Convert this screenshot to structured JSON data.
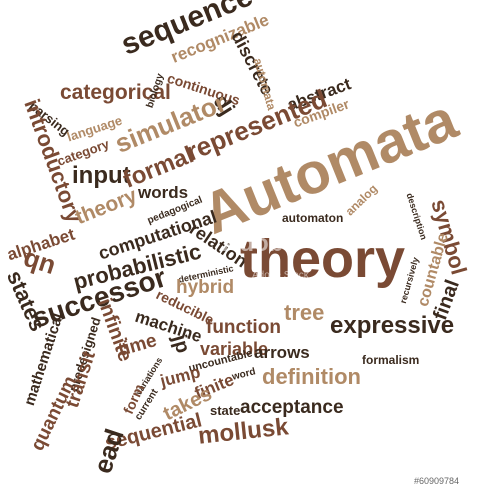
{
  "image_kind": "word-cloud",
  "background_color": "#ffffff",
  "palette": {
    "dark": "#3a2a1e",
    "brown": "#7a4a34",
    "tan": "#b08a66",
    "light": "#cdb192"
  },
  "words": {
    "sequence": "sequence",
    "recognizable": "recognizable",
    "discrete": "discrete",
    "automata_small": "automata",
    "abstract": "abstract",
    "compiler": "compiler",
    "categorical": "categorical",
    "biology": "biology",
    "continuous": "continuous",
    "dj": "dj",
    "parsing": "parsing",
    "language": "language",
    "simulator": "simulator",
    "represented": "represented",
    "introductory": "introductory",
    "category": "category",
    "input": "input",
    "formal": "formal",
    "automata_big": "Automata",
    "words": "words",
    "theory_small": "theory",
    "pedagogical": "pedagogical",
    "automaton": "automaton",
    "analog": "analog",
    "description": "description",
    "symbol": "symbol",
    "alphabet": "alphabet",
    "computational": "computational",
    "relation": "relation",
    "deterministic": "deterministic",
    "theory_big": "theory",
    "countable": "countable",
    "recursively": "recursively",
    "final": "final",
    "states": "states",
    "qn": "qn",
    "probabilistic": "probabilistic",
    "successor": "successor",
    "hybrid": "hybrid",
    "reducible": "reducible",
    "tree": "tree",
    "expressive": "expressive",
    "function": "function",
    "infinite": "infinite",
    "predesigned": "predesigned",
    "mathematical": "mathematical",
    "machine": "machine",
    "time": "time",
    "jp": "jp",
    "variable": "variable",
    "arrows": "arrows",
    "uncountable": "uncountable",
    "jump": "jump",
    "finite": "finite",
    "word": "word",
    "definition": "definition",
    "formalism": "formalism",
    "transit": "transit",
    "quantum": "quantum",
    "variations": "variations",
    "form": "form",
    "current": "current",
    "takes": "takes",
    "state": "state",
    "acceptance": "acceptance",
    "sequential": "sequential",
    "mollusk": "mollusk",
    "ead": "ead"
  },
  "watermark": {
    "logo": "Adobe",
    "text": "Adobe Stock"
  },
  "stock_id": "#60909784"
}
